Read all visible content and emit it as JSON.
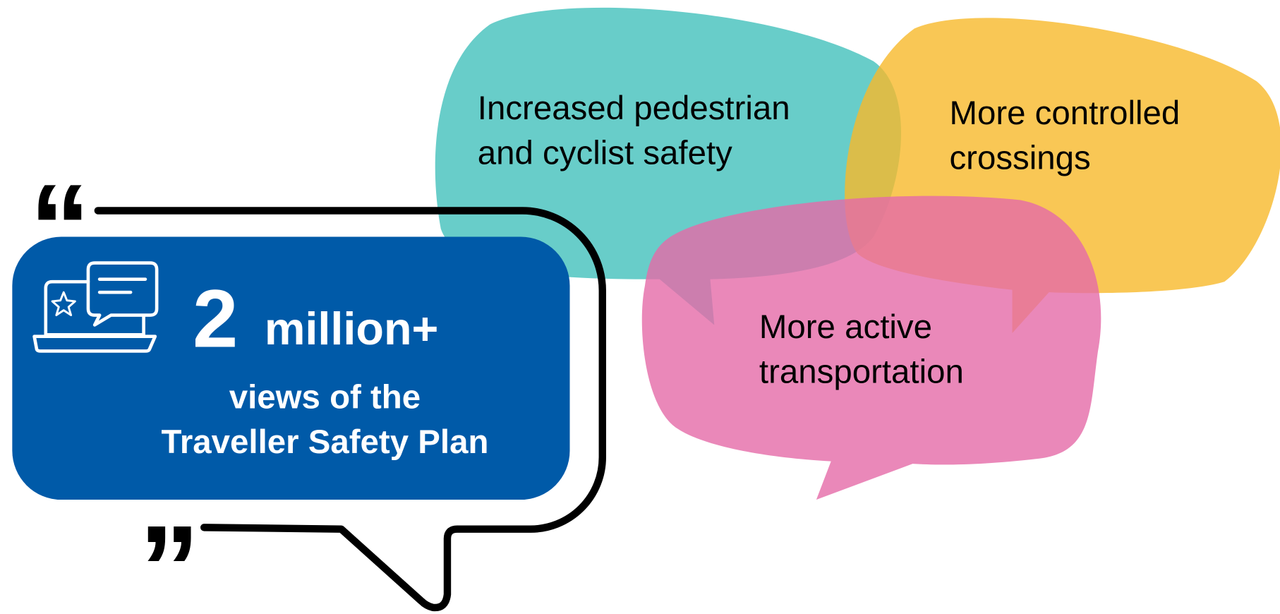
{
  "quotes": {
    "open": "“",
    "close": "”"
  },
  "stat": {
    "number": "2",
    "unit": "million+",
    "caption": [
      "views of the",
      "Traveller Safety Plan"
    ]
  },
  "bubbles": [
    {
      "lines": [
        "Increased pedestrian",
        "and cyclist safety"
      ]
    },
    {
      "lines": [
        "More controlled",
        "crossings"
      ]
    },
    {
      "lines": [
        "More active",
        "transportation"
      ]
    }
  ]
}
